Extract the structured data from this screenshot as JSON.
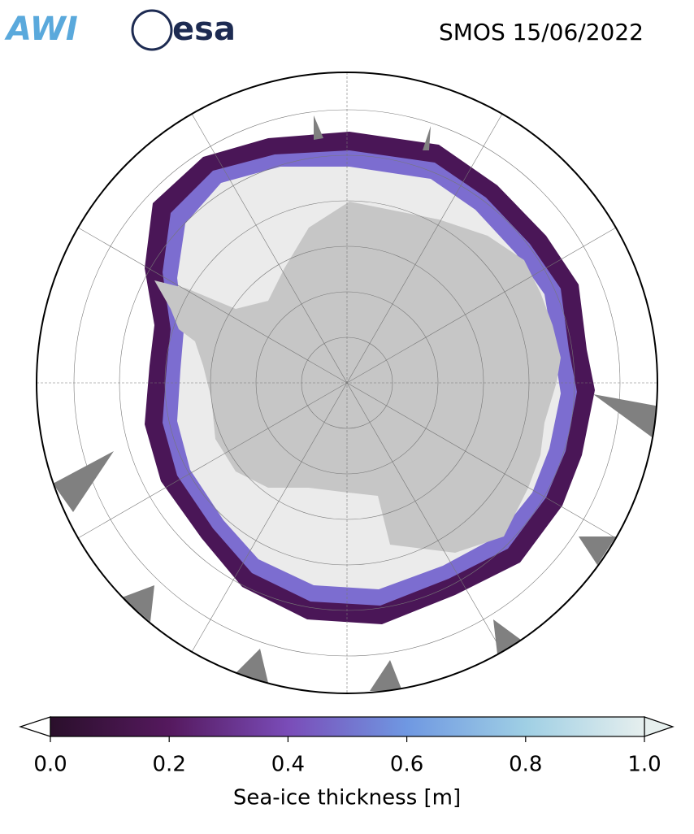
{
  "header": {
    "logos": [
      "AWI",
      "esa"
    ],
    "title": "SMOS 15/06/2022"
  },
  "colorbar": {
    "label": "Sea-ice thickness [m]",
    "lim": [
      0,
      1
    ],
    "ticks": [
      {
        "value": 0,
        "label": "0.0"
      },
      {
        "value": 0.2,
        "label": "0.2"
      },
      {
        "value": 0.4,
        "label": "0.4"
      },
      {
        "value": 0.6,
        "label": "0.6"
      },
      {
        "value": 0.8,
        "label": "0.8"
      },
      {
        "value": 1,
        "label": "1.0"
      }
    ]
  }
}
